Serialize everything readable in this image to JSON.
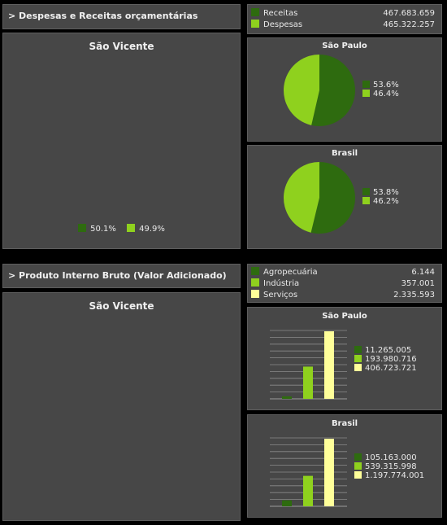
{
  "colors": {
    "dark_green": "#2e6b0f",
    "light_green": "#8fd11e",
    "yellow": "#ffff9a",
    "grid": "#8a8a8a"
  },
  "budget": {
    "header": "> Despesas e Receitas orçamentárias",
    "legend": [
      {
        "label": "Receitas",
        "value": "467.683.659"
      },
      {
        "label": "Despesas",
        "value": "465.322.257"
      }
    ],
    "local": {
      "title": "São Vicente",
      "legend_labels": [
        "50.1%",
        "49.9%"
      ]
    },
    "sao_paulo": {
      "title": "São Paulo",
      "legend_labels": [
        "53.6%",
        "46.4%"
      ]
    },
    "brasil": {
      "title": "Brasil",
      "legend_labels": [
        "53.8%",
        "46.2%"
      ]
    }
  },
  "gdp": {
    "header": "> Produto Interno Bruto (Valor Adicionado)",
    "legend": [
      {
        "label": "Agropecuária",
        "value": "6.144"
      },
      {
        "label": "Indústria",
        "value": "357.001"
      },
      {
        "label": "Serviços",
        "value": "2.335.593"
      }
    ],
    "local": {
      "title": "São Vicente"
    },
    "sao_paulo": {
      "title": "São Paulo",
      "legend_labels": [
        "11.265.005",
        "193.980.716",
        "406.723.721"
      ]
    },
    "brasil": {
      "title": "Brasil",
      "legend_labels": [
        "105.163.000",
        "539.315.998",
        "1.197.774.001"
      ]
    }
  },
  "chart_data": [
    {
      "type": "pie",
      "title": "São Paulo",
      "categories": [
        "Receitas",
        "Despesas"
      ],
      "values": [
        53.6,
        46.4
      ]
    },
    {
      "type": "pie",
      "title": "Brasil",
      "categories": [
        "Receitas",
        "Despesas"
      ],
      "values": [
        53.8,
        46.2
      ]
    },
    {
      "type": "bar",
      "title": "São Paulo",
      "categories": [
        "Agropecuária",
        "Indústria",
        "Serviços"
      ],
      "values": [
        11265005,
        193980716,
        406723721
      ]
    },
    {
      "type": "bar",
      "title": "Brasil",
      "categories": [
        "Agropecuária",
        "Indústria",
        "Serviços"
      ],
      "values": [
        105163000,
        539315998,
        1197774001
      ]
    }
  ]
}
